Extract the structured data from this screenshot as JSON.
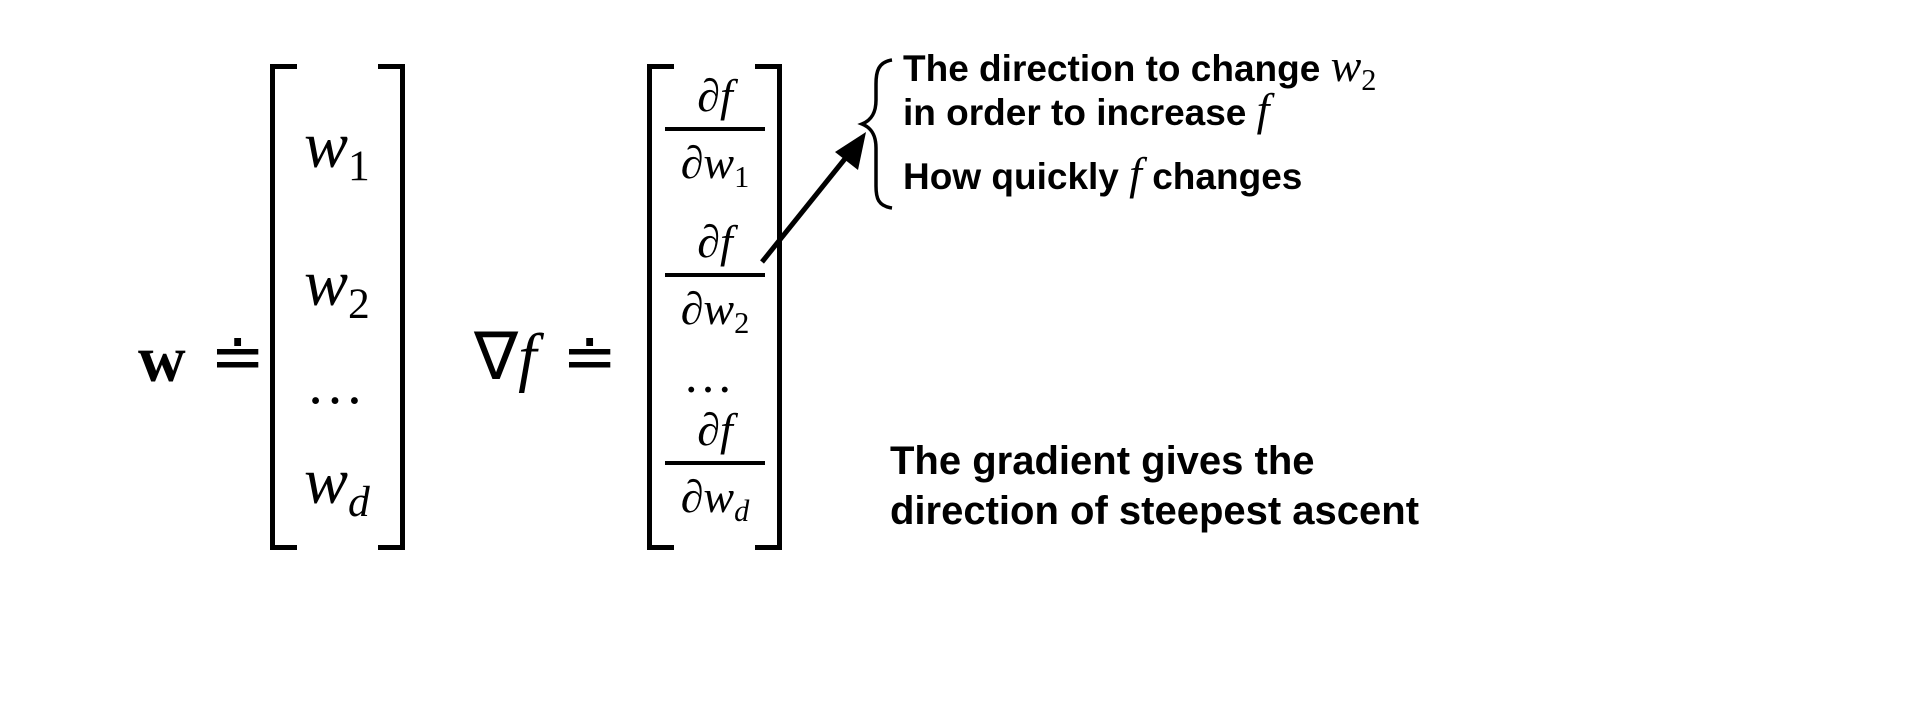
{
  "lhs": {
    "vector_symbol": "w",
    "def_symbol": "≐",
    "entries": [
      {
        "base": "w",
        "sub": "1"
      },
      {
        "base": "w",
        "sub": "2"
      },
      {
        "base": "…",
        "sub": ""
      },
      {
        "base": "w",
        "sub": "d"
      }
    ]
  },
  "gradient": {
    "nabla": "∇",
    "func": "f",
    "def_symbol": "≐",
    "entries": [
      {
        "num": "∂f",
        "den_base": "∂w",
        "den_sub": "1"
      },
      {
        "num": "∂f",
        "den_base": "∂w",
        "den_sub": "2"
      },
      {
        "ellipsis": "…"
      },
      {
        "num": "∂f",
        "den_base": "∂w",
        "den_sub": "d"
      }
    ]
  },
  "annotation": {
    "line1_text": "The direction to change",
    "line1_math_base": "w",
    "line1_math_sub": "2",
    "line2_text": "in order to increase",
    "line2_math": "f",
    "line3_pre": "How quickly",
    "line3_math": "f",
    "line3_post": "changes"
  },
  "caption": {
    "line1": "The gradient gives the",
    "line2": "direction of steepest ascent"
  }
}
